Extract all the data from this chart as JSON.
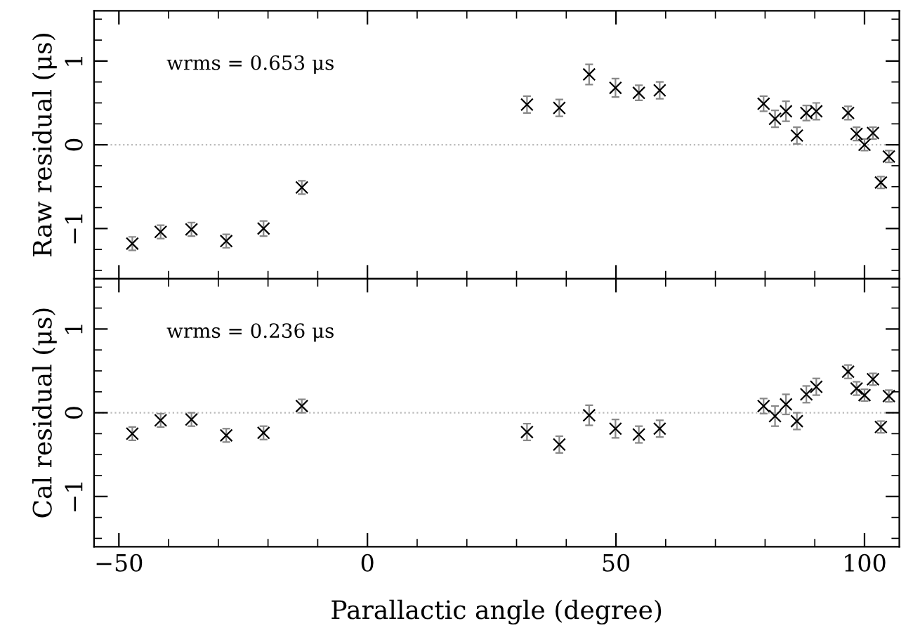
{
  "chart_data": [
    {
      "type": "scatter",
      "ylabel": "Raw residual (μs)",
      "annotations": [
        "wrms = 0.653 μs"
      ],
      "x": [
        -47.3,
        -41.6,
        -35.4,
        -28.4,
        -20.9,
        -13.2,
        32.1,
        38.6,
        44.6,
        49.9,
        54.6,
        58.8,
        79.7,
        82.0,
        84.2,
        86.4,
        88.3,
        90.3,
        96.7,
        98.4,
        100.0,
        101.7,
        103.3,
        104.9
      ],
      "series": [
        {
          "color": "#000000",
          "values": [
            -1.18,
            -1.04,
            -1.01,
            -1.15,
            -1.0,
            -0.51,
            0.48,
            0.44,
            0.84,
            0.68,
            0.62,
            0.65,
            0.49,
            0.31,
            0.4,
            0.11,
            0.38,
            0.4,
            0.38,
            0.13,
            0.0,
            0.14,
            -0.45,
            -0.14
          ],
          "errors": [
            0.08,
            0.08,
            0.08,
            0.08,
            0.09,
            0.08,
            0.1,
            0.1,
            0.12,
            0.11,
            0.09,
            0.1,
            0.09,
            0.1,
            0.12,
            0.1,
            0.09,
            0.1,
            0.08,
            0.08,
            0.07,
            0.07,
            0.07,
            0.07
          ]
        }
      ],
      "xlim": [
        -55,
        107
      ],
      "xticks": [
        {
          "value": -50,
          "label": null
        },
        {
          "value": 0,
          "label": null
        },
        {
          "value": 50,
          "label": null
        },
        {
          "value": 100,
          "label": null
        }
      ],
      "ylim": [
        -1.6,
        1.6
      ],
      "yticks": [
        {
          "value": -1,
          "label": "−1"
        },
        0,
        1
      ],
      "ref_lines": [
        {
          "axis": "y",
          "value": 0,
          "color": "#bbbbbb",
          "line_style": "dotted"
        }
      ],
      "marker": "cross",
      "grid": false,
      "legend": false,
      "tick_labels": "y"
    },
    {
      "type": "scatter",
      "xlabel": "Parallactic angle (degree)",
      "ylabel": "Cal residual (μs)",
      "annotations": [
        "wrms = 0.236 μs"
      ],
      "x": [
        -47.3,
        -41.6,
        -35.4,
        -28.4,
        -20.9,
        -13.2,
        32.1,
        38.6,
        44.6,
        49.9,
        54.6,
        58.8,
        79.7,
        82.0,
        84.2,
        86.4,
        88.3,
        90.3,
        96.7,
        98.4,
        100.0,
        101.7,
        103.3,
        104.9
      ],
      "series": [
        {
          "color": "#000000",
          "values": [
            -0.25,
            -0.09,
            -0.08,
            -0.27,
            -0.24,
            0.08,
            -0.23,
            -0.38,
            -0.03,
            -0.19,
            -0.26,
            -0.19,
            0.08,
            -0.04,
            0.1,
            -0.1,
            0.22,
            0.31,
            0.49,
            0.29,
            0.21,
            0.4,
            -0.17,
            0.2
          ],
          "errors": [
            0.08,
            0.08,
            0.08,
            0.08,
            0.08,
            0.08,
            0.1,
            0.1,
            0.12,
            0.11,
            0.1,
            0.1,
            0.09,
            0.12,
            0.12,
            0.1,
            0.1,
            0.1,
            0.08,
            0.08,
            0.07,
            0.07,
            0.07,
            0.07
          ]
        }
      ],
      "xlim": [
        -55,
        107
      ],
      "xticks": [
        {
          "value": -50,
          "label": "−50"
        },
        0,
        50,
        100
      ],
      "ylim": [
        -1.6,
        1.6
      ],
      "yticks": [
        {
          "value": -1,
          "label": "−1"
        },
        0,
        1
      ],
      "ref_lines": [
        {
          "axis": "y",
          "value": 0,
          "color": "#bbbbbb",
          "line_style": "dotted"
        }
      ],
      "marker": "cross",
      "grid": false,
      "legend": false
    }
  ]
}
